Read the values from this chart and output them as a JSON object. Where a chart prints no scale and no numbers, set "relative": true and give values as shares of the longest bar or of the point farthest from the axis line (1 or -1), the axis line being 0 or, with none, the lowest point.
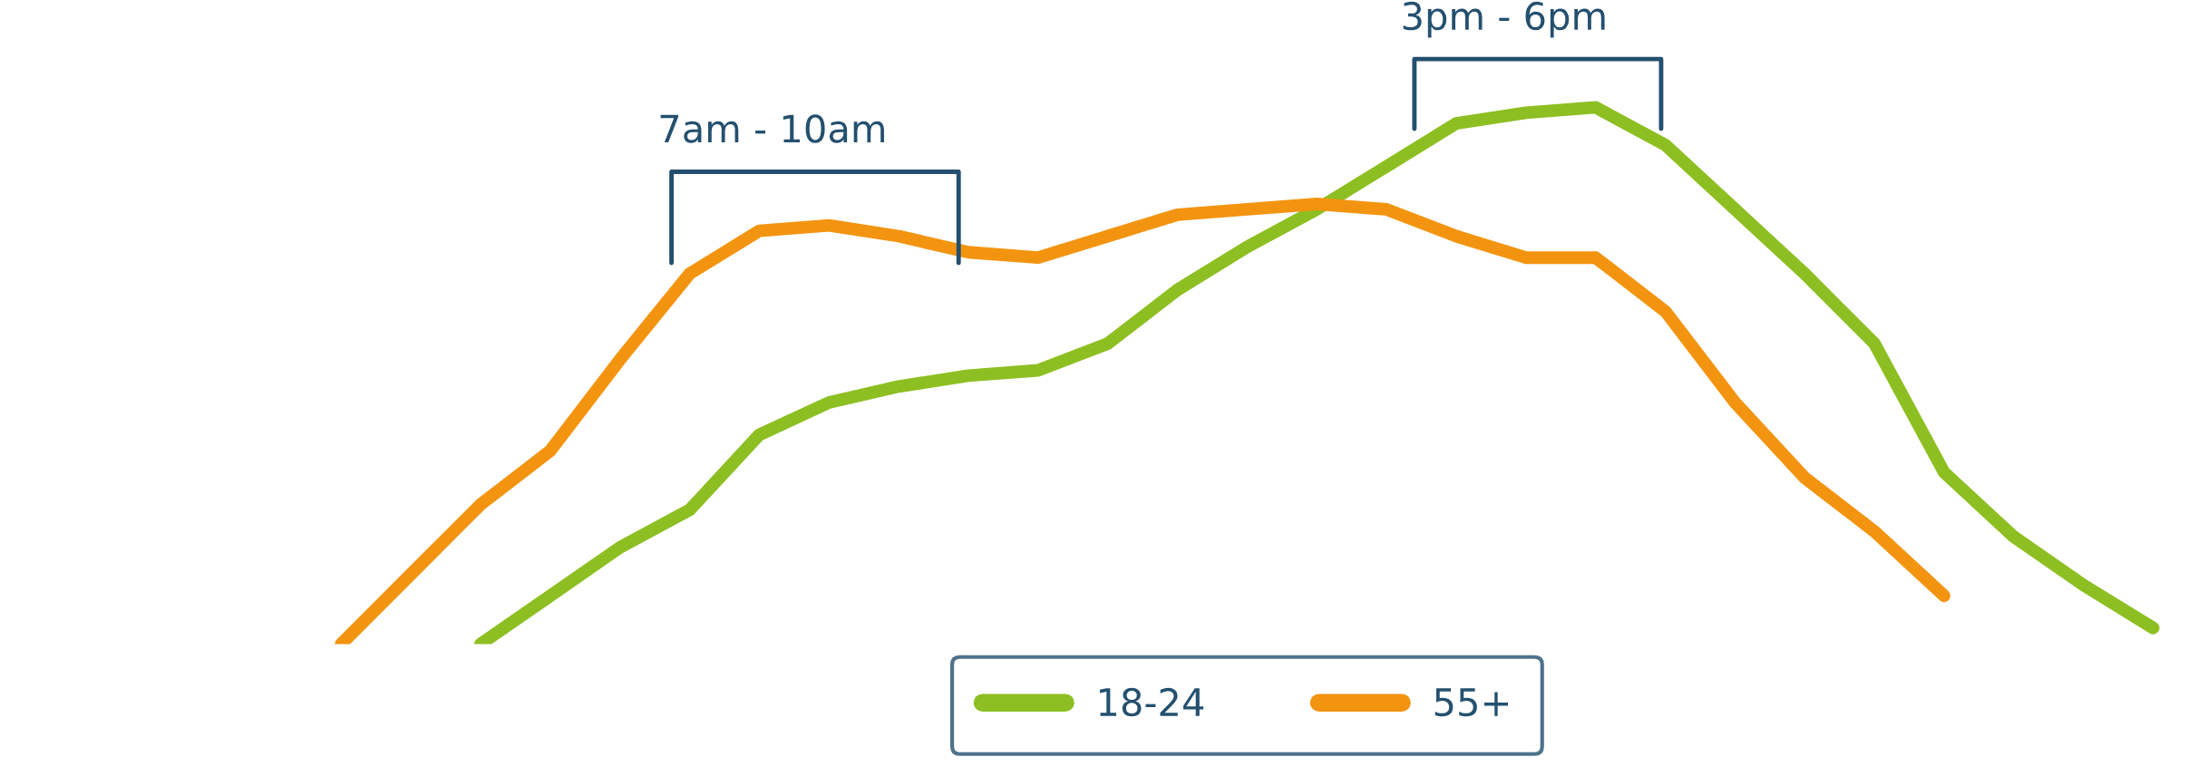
{
  "chart_data": {
    "type": "line",
    "relative": true,
    "legend": "bottom",
    "categories": [
      null,
      null,
      null,
      null,
      null,
      null,
      null,
      null,
      null,
      null,
      null,
      null,
      null,
      null,
      null,
      null,
      null,
      null,
      null,
      null,
      null,
      null,
      null,
      null,
      null,
      null,
      null
    ],
    "series": [
      {
        "name": "18-24",
        "color": "#8dbf22",
        "values": [
          null,
          null,
          0,
          0.09,
          0.18,
          0.25,
          0.39,
          0.45,
          0.48,
          0.5,
          0.51,
          0.56,
          0.66,
          0.74,
          0.81,
          0.89,
          0.97,
          0.99,
          1.0,
          0.93,
          0.81,
          0.69,
          0.56,
          0.32,
          0.2,
          0.11,
          0.03
        ]
      },
      {
        "name": "55+",
        "color": "#f39410",
        "values": [
          0,
          0.13,
          0.26,
          0.36,
          0.53,
          0.69,
          0.77,
          0.78,
          0.76,
          0.73,
          0.72,
          0.76,
          0.8,
          0.81,
          0.82,
          0.81,
          0.76,
          0.72,
          0.72,
          0.62,
          0.45,
          0.31,
          0.21,
          0.09,
          null,
          null,
          null
        ]
      }
    ],
    "annotations": [
      "7am - 10am",
      "3pm - 6pm"
    ]
  }
}
